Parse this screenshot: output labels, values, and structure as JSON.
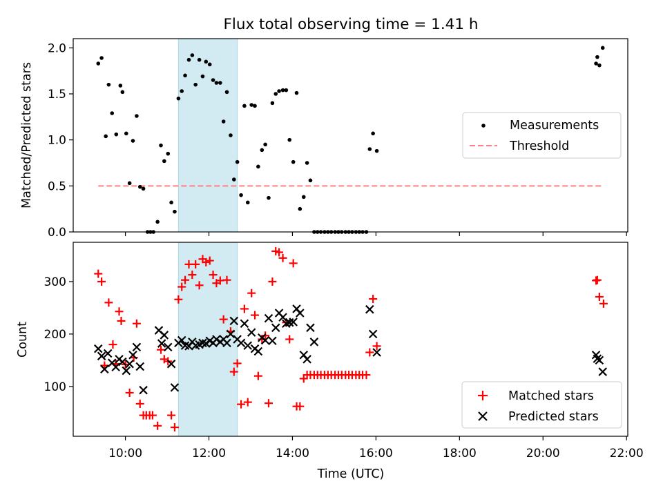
{
  "title": "Flux total observing time = 1.41 h",
  "colors": {
    "measure": "#000000",
    "threshold": "#ff8080",
    "matched": "#ff0000",
    "predicted": "#000000",
    "shade": "#add8e6"
  },
  "chart_data": [
    {
      "type": "scatter",
      "ylabel": "Matched/Predicted stars",
      "xlim": [
        8.75,
        22.03
      ],
      "ylim": [
        0,
        2.1
      ],
      "yticks": [
        0.0,
        0.5,
        1.0,
        1.5,
        2.0
      ],
      "ytick_labels": [
        "0.0",
        "0.5",
        "1.0",
        "1.5",
        "2.0"
      ],
      "legend": {
        "position": "center-right",
        "entries": [
          "Measurements",
          "Threshold"
        ]
      },
      "shaded_span": [
        11.27,
        12.68
      ],
      "threshold": {
        "name": "Threshold",
        "x": [
          9.35,
          21.45
        ],
        "y": 0.5
      },
      "series": [
        {
          "name": "Measurements",
          "x": [
            9.35,
            9.43,
            9.53,
            9.6,
            9.68,
            9.78,
            9.88,
            9.93,
            10.02,
            10.1,
            10.18,
            10.27,
            10.35,
            10.43,
            10.53,
            10.6,
            10.67,
            10.77,
            10.85,
            10.93,
            11.02,
            11.1,
            11.18,
            11.27,
            11.35,
            11.43,
            11.52,
            11.6,
            11.68,
            11.77,
            11.85,
            11.93,
            12.02,
            12.1,
            12.18,
            12.27,
            12.35,
            12.43,
            12.52,
            12.6,
            12.68,
            12.77,
            12.85,
            12.93,
            13.02,
            13.1,
            13.18,
            13.27,
            13.35,
            13.43,
            13.52,
            13.6,
            13.68,
            13.77,
            13.85,
            13.93,
            14.02,
            14.1,
            14.18,
            14.27,
            14.35,
            14.43,
            14.52,
            14.6,
            14.68,
            14.77,
            14.85,
            14.93,
            15.02,
            15.1,
            15.18,
            15.27,
            15.35,
            15.43,
            15.52,
            15.6,
            15.68,
            15.77,
            15.85,
            15.93,
            16.02,
            21.27,
            21.3,
            21.35,
            21.43
          ],
          "y": [
            1.83,
            1.89,
            1.04,
            1.6,
            1.29,
            1.06,
            1.59,
            1.52,
            1.07,
            0.53,
            0.99,
            1.26,
            0.49,
            0.47,
            0.0,
            0.0,
            0.0,
            0.11,
            0.94,
            0.77,
            0.85,
            0.32,
            0.22,
            1.45,
            1.53,
            1.7,
            1.87,
            1.92,
            1.6,
            1.87,
            1.69,
            1.85,
            1.82,
            1.65,
            1.62,
            1.62,
            1.2,
            1.52,
            1.05,
            0.57,
            0.76,
            0.4,
            1.37,
            0.32,
            1.38,
            1.37,
            0.71,
            0.89,
            0.95,
            0.37,
            1.4,
            1.5,
            1.53,
            1.54,
            1.54,
            1.0,
            0.76,
            1.51,
            0.25,
            0.38,
            0.75,
            0.56,
            0.0,
            0.0,
            0.0,
            0.0,
            0.0,
            0.0,
            0.0,
            0.0,
            0.0,
            0.0,
            0.0,
            0.0,
            0.0,
            0.0,
            0.0,
            0.0,
            0.9,
            1.07,
            0.88,
            1.83,
            1.9,
            1.81,
            2.0
          ]
        }
      ]
    },
    {
      "type": "scatter",
      "xlabel": "Time (UTC)",
      "ylabel": "Count",
      "xlim": [
        8.75,
        22.03
      ],
      "ylim": [
        5,
        375
      ],
      "xticks": [
        10,
        12,
        14,
        16,
        18,
        20,
        22
      ],
      "xtick_labels": [
        "10:00",
        "12:00",
        "14:00",
        "16:00",
        "18:00",
        "20:00",
        "22:00"
      ],
      "yticks": [
        100,
        200,
        300
      ],
      "ytick_labels": [
        "100",
        "200",
        "300"
      ],
      "legend": {
        "position": "lower-right",
        "entries": [
          "Matched stars",
          "Predicted stars"
        ]
      },
      "shaded_span": [
        11.27,
        12.68
      ],
      "series": [
        {
          "name": "Matched stars",
          "x": [
            9.35,
            9.43,
            9.5,
            9.6,
            9.7,
            9.77,
            9.85,
            9.9,
            10.0,
            10.1,
            10.2,
            10.27,
            10.35,
            10.43,
            10.5,
            10.58,
            10.65,
            10.77,
            10.85,
            10.93,
            11.02,
            11.1,
            11.18,
            11.27,
            11.35,
            11.43,
            11.52,
            11.6,
            11.68,
            11.77,
            11.85,
            11.93,
            12.02,
            12.1,
            12.18,
            12.27,
            12.35,
            12.43,
            12.52,
            12.6,
            12.68,
            12.77,
            12.85,
            12.93,
            13.02,
            13.1,
            13.18,
            13.27,
            13.35,
            13.43,
            13.52,
            13.6,
            13.68,
            13.77,
            13.85,
            13.93,
            14.02,
            14.1,
            14.18,
            14.27,
            14.35,
            14.43,
            14.52,
            14.6,
            14.68,
            14.77,
            14.85,
            14.93,
            15.02,
            15.1,
            15.18,
            15.27,
            15.35,
            15.43,
            15.52,
            15.6,
            15.68,
            15.77,
            15.85,
            15.93,
            16.02,
            21.27,
            21.3,
            21.35,
            21.45
          ],
          "y": [
            315,
            300,
            140,
            260,
            180,
            143,
            243,
            225,
            142,
            88,
            155,
            220,
            67,
            45,
            45,
            45,
            45,
            25,
            170,
            152,
            148,
            45,
            22,
            266,
            290,
            303,
            333,
            313,
            333,
            293,
            343,
            337,
            340,
            313,
            297,
            302,
            228,
            303,
            205,
            128,
            144,
            66,
            248,
            70,
            278,
            236,
            120,
            190,
            197,
            68,
            300,
            358,
            356,
            345,
            222,
            190,
            335,
            62,
            62,
            115,
            122,
            122,
            122,
            122,
            122,
            122,
            122,
            122,
            122,
            122,
            122,
            122,
            122,
            122,
            122,
            122,
            122,
            122,
            165,
            267,
            177,
            302,
            303,
            271,
            258
          ]
        },
        {
          "name": "Predicted stars",
          "x": [
            9.35,
            9.43,
            9.5,
            9.58,
            9.68,
            9.77,
            9.85,
            9.93,
            10.02,
            10.1,
            10.18,
            10.27,
            10.35,
            10.43,
            10.8,
            10.87,
            10.93,
            11.02,
            11.1,
            11.18,
            11.27,
            11.35,
            11.43,
            11.52,
            11.6,
            11.68,
            11.77,
            11.85,
            11.93,
            12.02,
            12.1,
            12.18,
            12.27,
            12.35,
            12.43,
            12.52,
            12.6,
            12.68,
            12.77,
            12.85,
            12.93,
            13.02,
            13.1,
            13.18,
            13.27,
            13.35,
            13.43,
            13.52,
            13.6,
            13.68,
            13.77,
            13.85,
            13.93,
            14.02,
            14.1,
            14.18,
            14.27,
            14.35,
            14.43,
            14.52,
            15.85,
            15.93,
            16.02,
            21.27,
            21.3,
            21.35,
            21.43
          ],
          "y": [
            172,
            158,
            133,
            163,
            145,
            137,
            152,
            147,
            130,
            143,
            160,
            175,
            138,
            93,
            207,
            182,
            198,
            175,
            143,
            98,
            183,
            188,
            178,
            177,
            185,
            178,
            180,
            183,
            182,
            187,
            183,
            190,
            185,
            190,
            183,
            200,
            225,
            190,
            183,
            220,
            178,
            203,
            172,
            167,
            193,
            188,
            230,
            187,
            212,
            240,
            232,
            220,
            222,
            223,
            248,
            240,
            160,
            152,
            212,
            185,
            247,
            200,
            165,
            160,
            153,
            150,
            128
          ]
        }
      ]
    }
  ]
}
